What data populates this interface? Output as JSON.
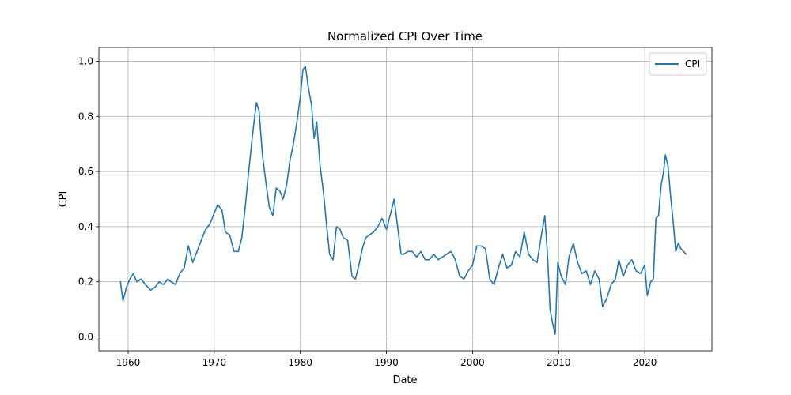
{
  "chart_data": {
    "type": "line",
    "title": "Normalized CPI Over Time",
    "xlabel": "Date",
    "ylabel": "CPI",
    "xlim": [
      1956.6,
      2027.8
    ],
    "ylim": [
      -0.05,
      1.05
    ],
    "xticks": [
      1960,
      1970,
      1980,
      1990,
      2000,
      2010,
      2020
    ],
    "xtick_labels": [
      "1960",
      "1970",
      "1980",
      "1990",
      "2000",
      "2010",
      "2020"
    ],
    "yticks": [
      0.0,
      0.2,
      0.4,
      0.6,
      0.8,
      1.0
    ],
    "ytick_labels": [
      "0.0",
      "0.2",
      "0.4",
      "0.6",
      "0.8",
      "1.0"
    ],
    "grid": true,
    "legend_position": "upper right",
    "series": [
      {
        "name": "CPI",
        "color": "#1f77b4",
        "x": [
          1959.1,
          1959.4,
          1959.8,
          1960.2,
          1960.6,
          1961.0,
          1961.5,
          1962.0,
          1962.6,
          1963.1,
          1963.6,
          1964.1,
          1964.6,
          1965.0,
          1965.5,
          1966.0,
          1966.5,
          1967.0,
          1967.5,
          1968.0,
          1968.6,
          1969.0,
          1969.5,
          1970.0,
          1970.4,
          1970.9,
          1971.3,
          1971.8,
          1972.3,
          1972.8,
          1973.2,
          1973.6,
          1974.0,
          1974.4,
          1974.7,
          1974.9,
          1975.2,
          1975.6,
          1976.0,
          1976.4,
          1976.8,
          1977.2,
          1977.6,
          1978.0,
          1978.4,
          1978.8,
          1979.2,
          1979.6,
          1980.0,
          1980.3,
          1980.6,
          1980.9,
          1981.3,
          1981.6,
          1981.9,
          1982.3,
          1982.7,
          1983.0,
          1983.4,
          1983.8,
          1984.2,
          1984.6,
          1985.0,
          1985.5,
          1986.0,
          1986.4,
          1986.8,
          1987.2,
          1987.6,
          1988.0,
          1988.5,
          1989.0,
          1989.5,
          1990.0,
          1990.5,
          1990.9,
          1991.3,
          1991.7,
          1992.0,
          1992.5,
          1993.0,
          1993.5,
          1994.0,
          1994.5,
          1995.0,
          1995.5,
          1996.0,
          1996.5,
          1997.0,
          1997.5,
          1998.0,
          1998.5,
          1999.0,
          1999.5,
          2000.0,
          2000.5,
          2001.0,
          2001.5,
          2002.0,
          2002.5,
          2003.0,
          2003.5,
          2004.0,
          2004.5,
          2005.0,
          2005.5,
          2006.0,
          2006.5,
          2007.0,
          2007.5,
          2008.0,
          2008.4,
          2008.7,
          2009.0,
          2009.3,
          2009.6,
          2009.9,
          2010.3,
          2010.8,
          2011.2,
          2011.7,
          2012.2,
          2012.7,
          2013.2,
          2013.7,
          2014.2,
          2014.7,
          2015.1,
          2015.6,
          2016.1,
          2016.6,
          2017.0,
          2017.5,
          2018.0,
          2018.5,
          2019.0,
          2019.5,
          2020.0,
          2020.3,
          2020.7,
          2021.0,
          2021.3,
          2021.6,
          2021.9,
          2022.2,
          2022.4,
          2022.7,
          2023.0,
          2023.3,
          2023.6,
          2023.9,
          2024.2,
          2024.5,
          2024.8
        ],
        "values": [
          0.2,
          0.13,
          0.18,
          0.21,
          0.23,
          0.2,
          0.21,
          0.19,
          0.17,
          0.18,
          0.2,
          0.19,
          0.21,
          0.2,
          0.19,
          0.23,
          0.25,
          0.33,
          0.27,
          0.31,
          0.36,
          0.39,
          0.41,
          0.45,
          0.48,
          0.46,
          0.38,
          0.37,
          0.31,
          0.31,
          0.36,
          0.47,
          0.6,
          0.72,
          0.8,
          0.85,
          0.82,
          0.66,
          0.56,
          0.47,
          0.44,
          0.54,
          0.53,
          0.5,
          0.55,
          0.64,
          0.7,
          0.78,
          0.87,
          0.97,
          0.98,
          0.91,
          0.84,
          0.72,
          0.78,
          0.62,
          0.52,
          0.42,
          0.3,
          0.28,
          0.4,
          0.39,
          0.36,
          0.35,
          0.22,
          0.21,
          0.26,
          0.32,
          0.36,
          0.37,
          0.38,
          0.4,
          0.43,
          0.39,
          0.45,
          0.5,
          0.4,
          0.3,
          0.3,
          0.31,
          0.31,
          0.29,
          0.31,
          0.28,
          0.28,
          0.3,
          0.28,
          0.29,
          0.3,
          0.31,
          0.28,
          0.22,
          0.21,
          0.24,
          0.26,
          0.33,
          0.33,
          0.32,
          0.21,
          0.19,
          0.25,
          0.3,
          0.25,
          0.26,
          0.31,
          0.29,
          0.38,
          0.3,
          0.28,
          0.27,
          0.37,
          0.44,
          0.3,
          0.1,
          0.05,
          0.01,
          0.27,
          0.22,
          0.19,
          0.29,
          0.34,
          0.27,
          0.23,
          0.24,
          0.19,
          0.24,
          0.21,
          0.11,
          0.14,
          0.19,
          0.21,
          0.28,
          0.22,
          0.26,
          0.28,
          0.24,
          0.23,
          0.26,
          0.15,
          0.2,
          0.21,
          0.43,
          0.44,
          0.55,
          0.6,
          0.66,
          0.62,
          0.51,
          0.42,
          0.31,
          0.34,
          0.32,
          0.31,
          0.3
        ]
      }
    ]
  }
}
